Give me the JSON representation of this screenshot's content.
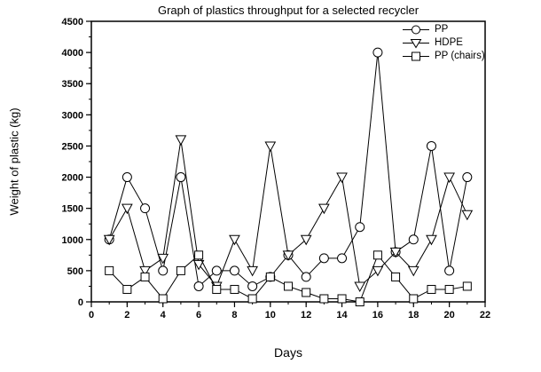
{
  "chart_data": {
    "type": "line",
    "title": "Graph of plastics throughput for a selected recycler",
    "xlabel": "Days",
    "ylabel": "Weight of plastic (kg)",
    "xlim": [
      0,
      22
    ],
    "ylim": [
      0,
      4500
    ],
    "x_ticks": [
      0,
      2,
      4,
      6,
      8,
      10,
      12,
      14,
      16,
      18,
      20,
      22
    ],
    "y_ticks": [
      0,
      500,
      1000,
      1500,
      2000,
      2500,
      3000,
      3500,
      4000,
      4500
    ],
    "x_minor_step": 1,
    "y_minor_step": 250,
    "grid": false,
    "legend_position": "top-right-inside",
    "line_color": "#000000",
    "marker_fill": "#ffffff",
    "x": [
      1,
      2,
      3,
      4,
      5,
      6,
      7,
      8,
      9,
      10,
      11,
      12,
      13,
      14,
      15,
      16,
      17,
      18,
      19,
      20,
      21
    ],
    "series": [
      {
        "name": "PP",
        "marker": "circle",
        "values": [
          1000,
          2000,
          1500,
          500,
          2000,
          250,
          500,
          500,
          250,
          400,
          750,
          400,
          700,
          700,
          1200,
          4000,
          800,
          1000,
          2500,
          500,
          2000
        ]
      },
      {
        "name": "HDPE",
        "marker": "triangle-down",
        "values": [
          1000,
          1500,
          500,
          700,
          2600,
          600,
          250,
          1000,
          500,
          2500,
          750,
          1000,
          1500,
          2000,
          250,
          500,
          800,
          500,
          1000,
          2000,
          1400
        ]
      },
      {
        "name": "PP (chairs)",
        "marker": "square",
        "values": [
          500,
          200,
          400,
          50,
          500,
          750,
          200,
          200,
          50,
          400,
          250,
          150,
          50,
          50,
          0,
          750,
          400,
          50,
          200,
          200,
          250
        ]
      }
    ]
  }
}
